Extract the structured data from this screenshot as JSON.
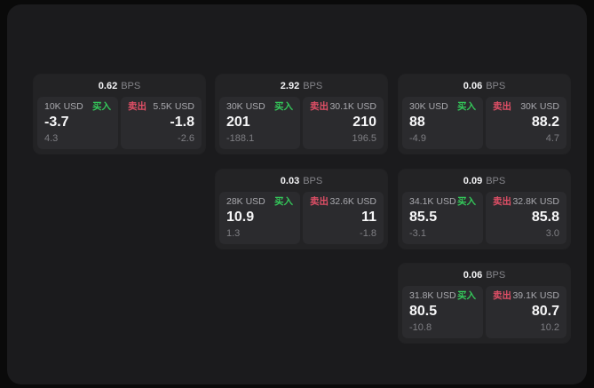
{
  "labels": {
    "buy": "买入",
    "sell": "卖出",
    "bps_unit": "BPS"
  },
  "colors": {
    "page_bg": "#0a0a0a",
    "panel_bg": "#1b1b1d",
    "card_bg": "#232325",
    "tile_bg": "#2b2b2e",
    "buy_green": "#34c85a",
    "sell_red": "#df4f66",
    "text_primary": "#f7f7f8",
    "text_muted": "#7e7e83",
    "text_amount": "#a9a9ae"
  },
  "cards": [
    {
      "bps": "0.62",
      "buy": {
        "amount": "10K USD",
        "price": "-3.7",
        "delta": "4.3"
      },
      "sell": {
        "amount": "5.5K USD",
        "price": "-1.8",
        "delta": "-2.6"
      }
    },
    {
      "bps": "2.92",
      "buy": {
        "amount": "30K USD",
        "price": "201",
        "delta": "-188.1"
      },
      "sell": {
        "amount": "30.1K USD",
        "price": "210",
        "delta": "196.5"
      }
    },
    {
      "bps": "0.06",
      "buy": {
        "amount": "30K USD",
        "price": "88",
        "delta": "-4.9"
      },
      "sell": {
        "amount": "30K USD",
        "price": "88.2",
        "delta": "4.7"
      }
    },
    {
      "bps": "0.03",
      "buy": {
        "amount": "28K USD",
        "price": "10.9",
        "delta": "1.3"
      },
      "sell": {
        "amount": "32.6K USD",
        "price": "11",
        "delta": "-1.8"
      }
    },
    {
      "bps": "0.09",
      "buy": {
        "amount": "34.1K USD",
        "price": "85.5",
        "delta": "-3.1"
      },
      "sell": {
        "amount": "32.8K USD",
        "price": "85.8",
        "delta": "3.0"
      }
    },
    {
      "bps": "0.06",
      "buy": {
        "amount": "31.8K USD",
        "price": "80.5",
        "delta": "-10.8"
      },
      "sell": {
        "amount": "39.1K USD",
        "price": "80.7",
        "delta": "10.2"
      }
    }
  ]
}
